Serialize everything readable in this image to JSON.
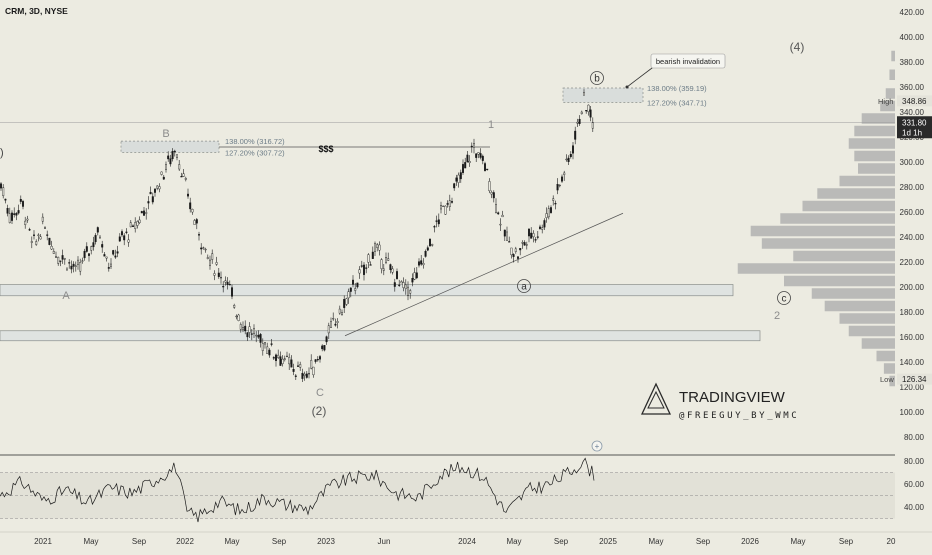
{
  "header": {
    "symbol_line": "CRM, 3D, NYSE"
  },
  "colors": {
    "background": "#ecebe1",
    "candle": "#1a1a1a",
    "zone_fill": "#dfe3e1",
    "zone_border": "#8a8f8c",
    "volume_profile": "#a9a9a9",
    "label_gray": "#8c8c8c",
    "fib_text": "#6b7b86",
    "rsi_line": "#1a1a1a",
    "rsi_band": "#e2e1d7"
  },
  "chart_data": [
    {
      "type": "candlestick",
      "title": "CRM, 3D, NYSE",
      "ylim": [
        70,
        425
      ],
      "y_ticks": [
        "80.00",
        "100.00",
        "120.00",
        "140.00",
        "160.00",
        "180.00",
        "200.00",
        "220.00",
        "240.00",
        "260.00",
        "280.00",
        "300.00",
        "320.00",
        "340.00",
        "360.00",
        "380.00",
        "400.00",
        "420.00"
      ],
      "x_ticks": [
        "2021",
        "May",
        "Sep",
        "2022",
        "May",
        "Sep",
        "2023",
        "Jun",
        "2024",
        "May",
        "Sep",
        "2025",
        "May",
        "Sep",
        "2026",
        "May",
        "Sep",
        "20"
      ],
      "grid": false,
      "price_path": [
        {
          "t": 0,
          "p": 285
        },
        {
          "t": 1,
          "p": 255
        },
        {
          "t": 2,
          "p": 268
        },
        {
          "t": 3,
          "p": 232
        },
        {
          "t": 4,
          "p": 250
        },
        {
          "t": 5,
          "p": 228
        },
        {
          "t": 6,
          "p": 222
        },
        {
          "t": 7,
          "p": 212
        },
        {
          "t": 8,
          "p": 228
        },
        {
          "t": 9,
          "p": 245
        },
        {
          "t": 10,
          "p": 216
        },
        {
          "t": 11,
          "p": 238
        },
        {
          "t": 12,
          "p": 245
        },
        {
          "t": 13,
          "p": 260
        },
        {
          "t": 14,
          "p": 275
        },
        {
          "t": 15,
          "p": 295
        },
        {
          "t": 16,
          "p": 311
        },
        {
          "t": 17,
          "p": 275
        },
        {
          "t": 18,
          "p": 245
        },
        {
          "t": 19,
          "p": 222
        },
        {
          "t": 20,
          "p": 212
        },
        {
          "t": 21,
          "p": 195
        },
        {
          "t": 22,
          "p": 170
        },
        {
          "t": 23,
          "p": 162
        },
        {
          "t": 24,
          "p": 155
        },
        {
          "t": 25,
          "p": 148
        },
        {
          "t": 26,
          "p": 140
        },
        {
          "t": 27,
          "p": 133
        },
        {
          "t": 28,
          "p": 130
        },
        {
          "t": 29,
          "p": 145
        },
        {
          "t": 30,
          "p": 165
        },
        {
          "t": 31,
          "p": 180
        },
        {
          "t": 32,
          "p": 198
        },
        {
          "t": 33,
          "p": 212
        },
        {
          "t": 34,
          "p": 230
        },
        {
          "t": 35,
          "p": 220
        },
        {
          "t": 36,
          "p": 207
        },
        {
          "t": 37,
          "p": 196
        },
        {
          "t": 38,
          "p": 212
        },
        {
          "t": 39,
          "p": 232
        },
        {
          "t": 40,
          "p": 258
        },
        {
          "t": 41,
          "p": 272
        },
        {
          "t": 42,
          "p": 290
        },
        {
          "t": 43,
          "p": 312
        },
        {
          "t": 44,
          "p": 300
        },
        {
          "t": 45,
          "p": 270
        },
        {
          "t": 46,
          "p": 240
        },
        {
          "t": 47,
          "p": 225
        },
        {
          "t": 48,
          "p": 240
        },
        {
          "t": 49,
          "p": 245
        },
        {
          "t": 50,
          "p": 262
        },
        {
          "t": 51,
          "p": 285
        },
        {
          "t": 52,
          "p": 310
        },
        {
          "t": 53,
          "p": 349
        },
        {
          "t": 54,
          "p": 332
        }
      ],
      "price_high_label": "High",
      "price_high_value": "348.86",
      "price_low_label": "Low",
      "price_low_value": "126.34",
      "last_price": "331.80",
      "last_countdown": "1d 1h",
      "fib_levels": [
        {
          "label": "138.00% (316.72)",
          "value": 316.72
        },
        {
          "label": "127.20% (307.72)",
          "value": 307.72
        },
        {
          "label": "138.00% (359.19)",
          "value": 359.19
        },
        {
          "label": "127.20% (347.71)",
          "value": 347.71
        }
      ],
      "support_zones": [
        {
          "low": 193,
          "high": 202
        },
        {
          "low": 157,
          "high": 165
        }
      ],
      "wave_labels": [
        "A",
        "B",
        "C",
        "(2)",
        "1",
        "a",
        "b",
        "c",
        "2",
        "(4)"
      ],
      "annotations": {
        "dollar_signs": "$$$",
        "callout": "bearish invalidation"
      }
    },
    {
      "type": "line",
      "title": "",
      "ylim": [
        24,
        96
      ],
      "y_ticks": [
        "40.00",
        "60.00",
        "80.00"
      ],
      "band": [
        30,
        70
      ],
      "rsi_path": [
        {
          "t": 0,
          "p": 50
        },
        {
          "t": 2,
          "p": 62
        },
        {
          "t": 4,
          "p": 45
        },
        {
          "t": 6,
          "p": 55
        },
        {
          "t": 8,
          "p": 43
        },
        {
          "t": 10,
          "p": 57
        },
        {
          "t": 12,
          "p": 52
        },
        {
          "t": 14,
          "p": 63
        },
        {
          "t": 16,
          "p": 75
        },
        {
          "t": 17,
          "p": 35
        },
        {
          "t": 18,
          "p": 32
        },
        {
          "t": 20,
          "p": 45
        },
        {
          "t": 22,
          "p": 36
        },
        {
          "t": 24,
          "p": 48
        },
        {
          "t": 26,
          "p": 42
        },
        {
          "t": 28,
          "p": 38
        },
        {
          "t": 30,
          "p": 58
        },
        {
          "t": 32,
          "p": 65
        },
        {
          "t": 34,
          "p": 68
        },
        {
          "t": 36,
          "p": 52
        },
        {
          "t": 38,
          "p": 48
        },
        {
          "t": 40,
          "p": 68
        },
        {
          "t": 42,
          "p": 75
        },
        {
          "t": 44,
          "p": 66
        },
        {
          "t": 45,
          "p": 50
        },
        {
          "t": 46,
          "p": 35
        },
        {
          "t": 48,
          "p": 55
        },
        {
          "t": 50,
          "p": 60
        },
        {
          "t": 52,
          "p": 72
        },
        {
          "t": 53,
          "p": 80
        },
        {
          "t": 54,
          "p": 68
        }
      ]
    }
  ],
  "volume_profile": [
    {
      "price": 385,
      "w": 0.02
    },
    {
      "price": 370,
      "w": 0.03
    },
    {
      "price": 355,
      "w": 0.05
    },
    {
      "price": 345,
      "w": 0.08
    },
    {
      "price": 335,
      "w": 0.18
    },
    {
      "price": 325,
      "w": 0.22
    },
    {
      "price": 315,
      "w": 0.25
    },
    {
      "price": 305,
      "w": 0.22
    },
    {
      "price": 295,
      "w": 0.2
    },
    {
      "price": 285,
      "w": 0.3
    },
    {
      "price": 275,
      "w": 0.42
    },
    {
      "price": 265,
      "w": 0.5
    },
    {
      "price": 255,
      "w": 0.62
    },
    {
      "price": 245,
      "w": 0.78
    },
    {
      "price": 235,
      "w": 0.72
    },
    {
      "price": 225,
      "w": 0.55
    },
    {
      "price": 215,
      "w": 0.85
    },
    {
      "price": 205,
      "w": 0.6
    },
    {
      "price": 195,
      "w": 0.45
    },
    {
      "price": 185,
      "w": 0.38
    },
    {
      "price": 175,
      "w": 0.3
    },
    {
      "price": 165,
      "w": 0.25
    },
    {
      "price": 155,
      "w": 0.18
    },
    {
      "price": 145,
      "w": 0.1
    },
    {
      "price": 135,
      "w": 0.06
    },
    {
      "price": 125,
      "w": 0.03
    }
  ],
  "watermark": {
    "brand": "TRADINGVIEW",
    "handle": "@FREEGUY_BY_WMC"
  }
}
